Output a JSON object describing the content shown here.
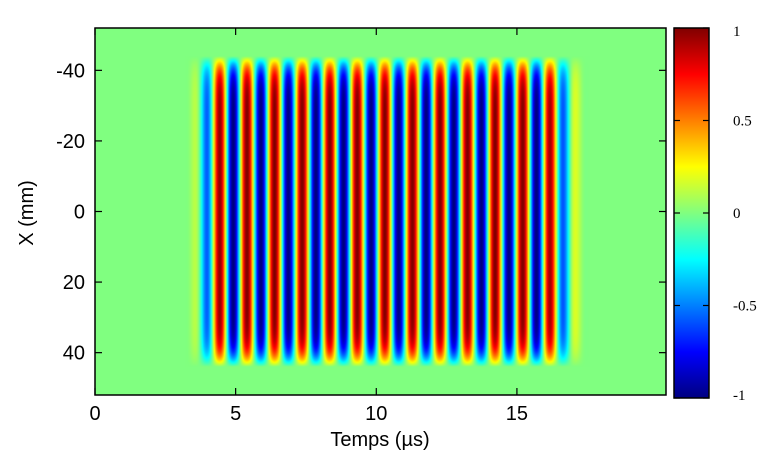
{
  "chart_data": {
    "type": "heatmap",
    "xlabel": "Temps (µs)",
    "ylabel": "X (mm)",
    "xlim": [
      0,
      20.3
    ],
    "ylim": [
      -52,
      52
    ],
    "y_reversed": true,
    "x_ticks": [
      0,
      5,
      10,
      15
    ],
    "x_tick_labels": [
      "0",
      "5",
      "10",
      "15"
    ],
    "y_ticks": [
      -40,
      -20,
      0,
      20,
      40
    ],
    "y_tick_labels": [
      "-40",
      "-20",
      "0",
      "20",
      "40"
    ],
    "colormap": "jet",
    "clim": [
      -1,
      1
    ],
    "colorbar": {
      "ticks": [
        1,
        0.5,
        0,
        -0.5,
        -1
      ],
      "tick_labels": [
        "1",
        "0.5",
        "0",
        "-0.5",
        "-1"
      ]
    },
    "signal": {
      "description_terms": [
        "tone burst"
      ],
      "t_start": 3.2,
      "t_end": 17.6,
      "t_ramp_up_end": 4.6,
      "t_ramp_down_start": 15.9,
      "period": 0.98,
      "x_half_extent": 44
    },
    "background_color": "#80ff80"
  }
}
